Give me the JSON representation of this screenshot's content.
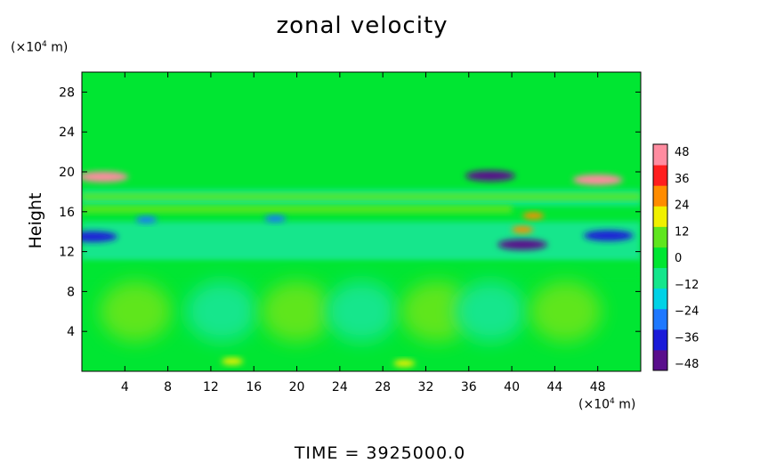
{
  "chart_data": {
    "type": "heatmap",
    "title": "zonal velocity",
    "ylabel": "Height",
    "y_unit": "(×10",
    "y_unit_exp": "4",
    "y_unit_tail": " m)",
    "x_unit": "(×10",
    "x_unit_exp": "4",
    "x_unit_tail": " m)",
    "xlim": [
      0,
      52
    ],
    "ylim": [
      0,
      30
    ],
    "xticks": [
      4,
      8,
      12,
      16,
      20,
      24,
      28,
      32,
      36,
      40,
      44,
      48
    ],
    "yticks": [
      4,
      8,
      12,
      16,
      20,
      24,
      28
    ],
    "colorbar": {
      "ticks": [
        48,
        36,
        24,
        12,
        0,
        -12,
        -24,
        -36,
        -48
      ],
      "range": [
        -48,
        48
      ],
      "colors": [
        "#5a0e8c",
        "#1a1ad8",
        "#1e78ff",
        "#00d2e6",
        "#14e68c",
        "#00e632",
        "#5fe61e",
        "#f0f000",
        "#ff8c00",
        "#ff1e1e",
        "#ff8ca0"
      ]
    },
    "features": [
      {
        "x": 2,
        "y": 19.5,
        "value": 40
      },
      {
        "x": 48,
        "y": 19.2,
        "value": 44
      },
      {
        "x": 38,
        "y": 19.6,
        "value": -40
      },
      {
        "x": 1,
        "y": 13.5,
        "value": -36
      },
      {
        "x": 49,
        "y": 13.6,
        "value": -36
      },
      {
        "x": 41,
        "y": 12.7,
        "value": -42
      },
      {
        "x": 42,
        "y": 15.6,
        "value": 28
      },
      {
        "x": 41,
        "y": 14.2,
        "value": 30
      },
      {
        "x": 6,
        "y": 15.2,
        "value": -22
      },
      {
        "x": 18,
        "y": 15.3,
        "value": -22
      },
      {
        "x": 14,
        "y": 1.0,
        "value": 18
      },
      {
        "x": 30,
        "y": 0.8,
        "value": 14
      }
    ]
  },
  "footer": {
    "text": "TIME  =  3925000.0"
  }
}
